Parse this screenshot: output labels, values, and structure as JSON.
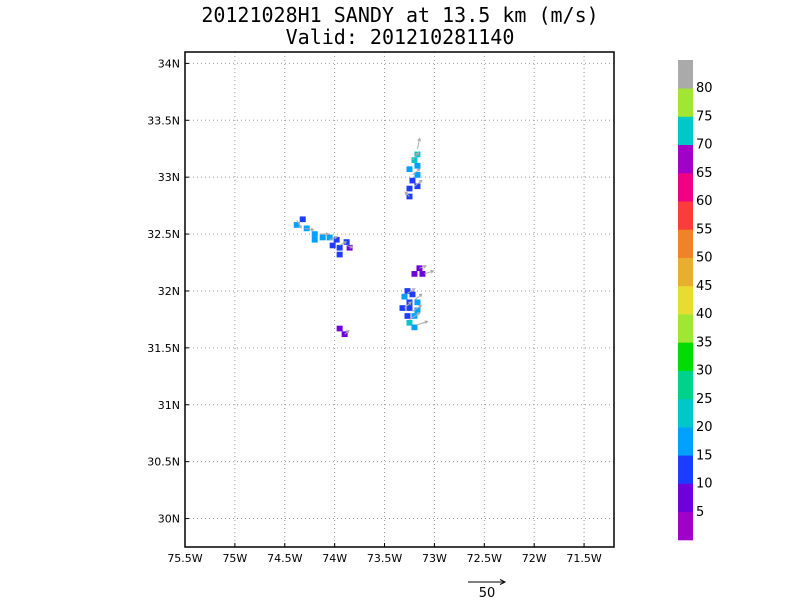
{
  "chart_data": {
    "type": "heatmap",
    "title": "20121028H1 SANDY at 13.5 km (m/s)",
    "subtitle": "Valid: 201210281140",
    "x_ticks": [
      "75.5W",
      "75W",
      "74.5W",
      "74W",
      "73.5W",
      "73W",
      "72.5W",
      "72W",
      "71.5W"
    ],
    "x_tick_values": [
      -75.5,
      -75,
      -74.5,
      -74,
      -73.5,
      -73,
      -72.5,
      -72,
      -71.5
    ],
    "y_ticks": [
      "30N",
      "30.5N",
      "31N",
      "31.5N",
      "32N",
      "32.5N",
      "33N",
      "33.5N",
      "34N"
    ],
    "y_tick_values": [
      30,
      30.5,
      31,
      31.5,
      32,
      32.5,
      33,
      33.5,
      34
    ],
    "xlim": [
      -75.5,
      -71.2
    ],
    "ylim": [
      29.75,
      34.1
    ],
    "grid": true,
    "cell_deg": [
      0.06,
      0.05
    ],
    "colorbar": {
      "colors": [
        "#a000c8",
        "#6e00dc",
        "#1e3cff",
        "#00a0ff",
        "#00c8c8",
        "#00d28c",
        "#00dc00",
        "#a0e632",
        "#e6dc32",
        "#e6af2d",
        "#f08228",
        "#fa3c3c",
        "#f00082",
        "#a000c8",
        "#00c8c8",
        "#a0e632",
        "#aaaaaa"
      ],
      "labels": [
        "5",
        "10",
        "15",
        "20",
        "25",
        "30",
        "35",
        "40",
        "45",
        "50",
        "55",
        "60",
        "65",
        "70",
        "75",
        "80"
      ]
    },
    "cells": [
      {
        "lon": -73.17,
        "lat": 33.2,
        "ws": 20
      },
      {
        "lon": -73.2,
        "lat": 33.15,
        "ws": 20
      },
      {
        "lon": -73.17,
        "lat": 33.1,
        "ws": 17
      },
      {
        "lon": -73.25,
        "lat": 33.07,
        "ws": 18
      },
      {
        "lon": -73.17,
        "lat": 33.02,
        "ws": 15
      },
      {
        "lon": -73.22,
        "lat": 32.97,
        "ws": 13
      },
      {
        "lon": -73.17,
        "lat": 32.92,
        "ws": 12
      },
      {
        "lon": -73.25,
        "lat": 32.9,
        "ws": 14
      },
      {
        "lon": -73.25,
        "lat": 32.83,
        "ws": 14
      },
      {
        "lon": -74.32,
        "lat": 32.63,
        "ws": 14
      },
      {
        "lon": -74.38,
        "lat": 32.58,
        "ws": 16
      },
      {
        "lon": -74.28,
        "lat": 32.55,
        "ws": 17
      },
      {
        "lon": -74.2,
        "lat": 32.5,
        "ws": 18
      },
      {
        "lon": -74.12,
        "lat": 32.47,
        "ws": 18
      },
      {
        "lon": -74.2,
        "lat": 32.45,
        "ws": 19
      },
      {
        "lon": -74.05,
        "lat": 32.47,
        "ws": 15
      },
      {
        "lon": -73.98,
        "lat": 32.45,
        "ws": 14
      },
      {
        "lon": -73.88,
        "lat": 32.43,
        "ws": 11
      },
      {
        "lon": -74.02,
        "lat": 32.4,
        "ws": 13
      },
      {
        "lon": -73.95,
        "lat": 32.38,
        "ws": 13
      },
      {
        "lon": -73.85,
        "lat": 32.38,
        "ws": 9
      },
      {
        "lon": -73.95,
        "lat": 32.32,
        "ws": 14
      },
      {
        "lon": -73.15,
        "lat": 32.2,
        "ws": 8
      },
      {
        "lon": -73.2,
        "lat": 32.15,
        "ws": 8
      },
      {
        "lon": -73.12,
        "lat": 32.15,
        "ws": 9
      },
      {
        "lon": -73.27,
        "lat": 32.0,
        "ws": 14
      },
      {
        "lon": -73.22,
        "lat": 31.97,
        "ws": 13
      },
      {
        "lon": -73.3,
        "lat": 31.95,
        "ws": 15
      },
      {
        "lon": -73.25,
        "lat": 31.9,
        "ws": 13
      },
      {
        "lon": -73.17,
        "lat": 31.9,
        "ws": 15
      },
      {
        "lon": -73.32,
        "lat": 31.85,
        "ws": 12
      },
      {
        "lon": -73.25,
        "lat": 31.85,
        "ws": 14
      },
      {
        "lon": -73.17,
        "lat": 31.83,
        "ws": 16
      },
      {
        "lon": -73.27,
        "lat": 31.78,
        "ws": 14
      },
      {
        "lon": -73.2,
        "lat": 31.78,
        "ws": 18
      },
      {
        "lon": -73.25,
        "lat": 31.72,
        "ws": 20
      },
      {
        "lon": -73.2,
        "lat": 31.68,
        "ws": 19
      },
      {
        "lon": -73.95,
        "lat": 31.67,
        "ws": 9
      },
      {
        "lon": -73.9,
        "lat": 31.62,
        "ws": 8
      }
    ],
    "vectors": [
      {
        "lon": -73.17,
        "lat": 33.25,
        "u": 3,
        "v": 14
      },
      {
        "lon": -73.22,
        "lat": 33.15,
        "u": 8,
        "v": 10
      },
      {
        "lon": -73.22,
        "lat": 33.02,
        "u": 10,
        "v": 8
      },
      {
        "lon": -73.2,
        "lat": 32.92,
        "u": 10,
        "v": 8
      },
      {
        "lon": -73.25,
        "lat": 32.83,
        "u": -6,
        "v": 6
      },
      {
        "lon": -74.38,
        "lat": 32.62,
        "u": 6,
        "v": -10
      },
      {
        "lon": -74.3,
        "lat": 32.55,
        "u": 12,
        "v": -2
      },
      {
        "lon": -74.15,
        "lat": 32.5,
        "u": 12,
        "v": 0
      },
      {
        "lon": -74.05,
        "lat": 32.45,
        "u": 10,
        "v": 4
      },
      {
        "lon": -73.95,
        "lat": 32.4,
        "u": 9,
        "v": 5
      },
      {
        "lon": -73.88,
        "lat": 32.4,
        "u": 8,
        "v": -3
      },
      {
        "lon": -73.15,
        "lat": 32.2,
        "u": 9,
        "v": 3
      },
      {
        "lon": -73.1,
        "lat": 32.15,
        "u": 12,
        "v": 4
      },
      {
        "lon": -73.27,
        "lat": 31.98,
        "u": 10,
        "v": 6
      },
      {
        "lon": -73.2,
        "lat": 31.92,
        "u": 10,
        "v": 8
      },
      {
        "lon": -73.3,
        "lat": 31.85,
        "u": 9,
        "v": 8
      },
      {
        "lon": -73.22,
        "lat": 31.82,
        "u": 12,
        "v": 8
      },
      {
        "lon": -73.25,
        "lat": 31.75,
        "u": 14,
        "v": 9
      },
      {
        "lon": -73.18,
        "lat": 31.7,
        "u": 15,
        "v": 5
      },
      {
        "lon": -73.9,
        "lat": 31.62,
        "u": 6,
        "v": 5
      }
    ],
    "reference_vector": {
      "value": 50,
      "label": "50"
    }
  }
}
